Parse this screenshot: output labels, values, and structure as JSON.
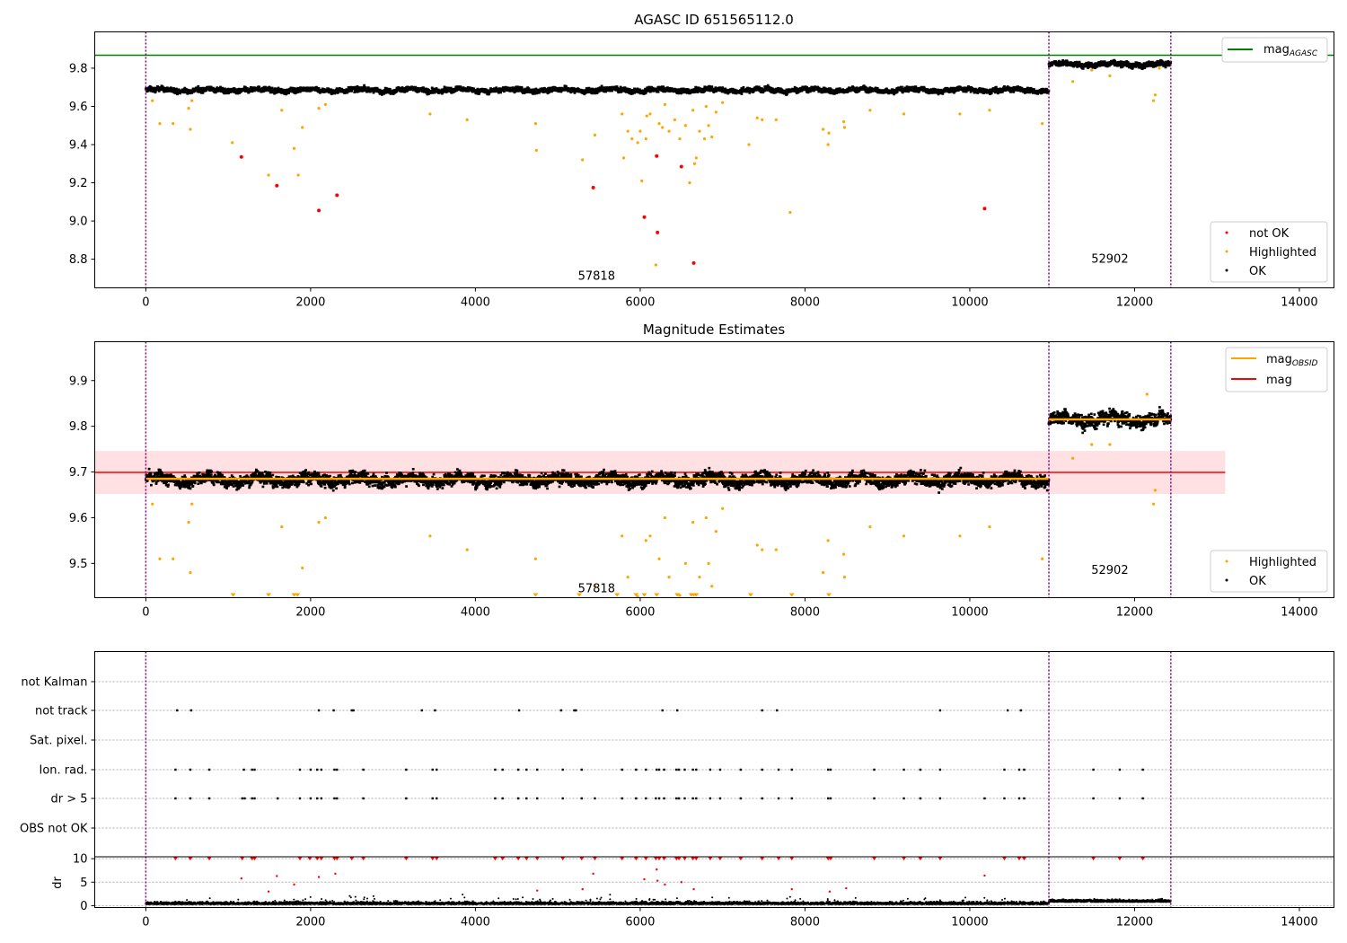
{
  "chart_data": [
    {
      "type": "scatter",
      "title": "AGASC ID 651565112.0",
      "xlim": [
        -620,
        14420
      ],
      "ylim": [
        8.65,
        9.99
      ],
      "xticks": [
        0,
        2000,
        4000,
        6000,
        8000,
        10000,
        12000,
        14000
      ],
      "yticks": [
        8.8,
        9.0,
        9.2,
        9.4,
        9.6,
        9.8
      ],
      "xtick_labels": [
        "0",
        "2000",
        "4000",
        "6000",
        "8000",
        "10000",
        "12000",
        "14000"
      ],
      "ytick_labels": [
        "8.8",
        "9.0",
        "9.2",
        "9.4",
        "9.6",
        "9.8"
      ],
      "hlines": [
        {
          "y": 9.868,
          "color": "#008000",
          "x": [
            -620,
            14420
          ],
          "label": "mag_AGASC"
        }
      ],
      "vlines": [
        0,
        10960,
        12440
      ],
      "vline_color": "#800080",
      "obs_labels": [
        {
          "text": "57818",
          "x": 5470,
          "y": 8.71
        },
        {
          "text": "52902",
          "x": 11700,
          "y": 8.8
        }
      ],
      "bands": [
        {
          "x": [
            0,
            10960
          ],
          "mean": 9.685,
          "spread": 0.026,
          "color": "#000000"
        },
        {
          "x": [
            10960,
            12440
          ],
          "mean": 9.82,
          "spread": 0.028,
          "color": "#000000"
        }
      ],
      "series": [
        {
          "name": "not OK",
          "color": "#ff0000",
          "points": [
            [
              1160,
              9.335
            ],
            [
              1590,
              9.185
            ],
            [
              2100,
              9.055
            ],
            [
              2320,
              9.135
            ],
            [
              5430,
              9.175
            ],
            [
              6050,
              9.02
            ],
            [
              6200,
              9.34
            ],
            [
              6210,
              8.94
            ],
            [
              6500,
              9.285
            ],
            [
              6650,
              8.78
            ],
            [
              10180,
              9.065
            ]
          ]
        },
        {
          "name": "Highlighted",
          "color": "#ffa500",
          "points": [
            [
              80,
              9.63
            ],
            [
              170,
              9.51
            ],
            [
              330,
              9.51
            ],
            [
              520,
              9.59
            ],
            [
              540,
              9.48
            ],
            [
              560,
              9.63
            ],
            [
              1050,
              9.41
            ],
            [
              1490,
              9.24
            ],
            [
              1650,
              9.58
            ],
            [
              1800,
              9.38
            ],
            [
              1850,
              9.24
            ],
            [
              1900,
              9.49
            ],
            [
              2100,
              9.59
            ],
            [
              2180,
              9.61
            ],
            [
              3450,
              9.56
            ],
            [
              3900,
              9.53
            ],
            [
              4730,
              9.51
            ],
            [
              4740,
              9.37
            ],
            [
              5300,
              9.32
            ],
            [
              5450,
              9.45
            ],
            [
              5780,
              9.56
            ],
            [
              5800,
              9.33
            ],
            [
              5850,
              9.47
            ],
            [
              5900,
              9.43
            ],
            [
              5970,
              9.41
            ],
            [
              6000,
              9.47
            ],
            [
              6020,
              9.21
            ],
            [
              6070,
              9.43
            ],
            [
              6080,
              9.55
            ],
            [
              6120,
              9.56
            ],
            [
              6190,
              8.77
            ],
            [
              6230,
              9.51
            ],
            [
              6270,
              9.49
            ],
            [
              6300,
              9.61
            ],
            [
              6350,
              9.47
            ],
            [
              6420,
              9.53
            ],
            [
              6480,
              9.43
            ],
            [
              6550,
              9.5
            ],
            [
              6600,
              9.2
            ],
            [
              6640,
              9.58
            ],
            [
              6660,
              9.3
            ],
            [
              6680,
              9.33
            ],
            [
              6720,
              9.47
            ],
            [
              6780,
              9.43
            ],
            [
              6800,
              9.6
            ],
            [
              6830,
              9.5
            ],
            [
              6870,
              9.44
            ],
            [
              6920,
              9.57
            ],
            [
              7000,
              9.62
            ],
            [
              7320,
              9.4
            ],
            [
              7420,
              9.54
            ],
            [
              7480,
              9.53
            ],
            [
              7650,
              9.53
            ],
            [
              7820,
              9.045
            ],
            [
              8220,
              9.48
            ],
            [
              8280,
              9.4
            ],
            [
              8290,
              9.46
            ],
            [
              8470,
              9.52
            ],
            [
              8480,
              9.49
            ],
            [
              8790,
              9.58
            ],
            [
              9200,
              9.56
            ],
            [
              9880,
              9.56
            ],
            [
              10240,
              9.58
            ],
            [
              10880,
              9.51
            ],
            [
              11250,
              9.73
            ],
            [
              11480,
              9.79
            ],
            [
              11700,
              9.76
            ],
            [
              12230,
              9.63
            ],
            [
              12250,
              9.66
            ],
            [
              12300,
              9.8
            ]
          ]
        }
      ],
      "legend": [
        "not OK",
        "Highlighted",
        "OK"
      ],
      "legend_top": [
        "mag_AGASC"
      ]
    },
    {
      "type": "scatter",
      "title": "Magnitude Estimates",
      "xlim": [
        -620,
        14420
      ],
      "ylim": [
        9.425,
        9.985
      ],
      "xticks": [
        0,
        2000,
        4000,
        6000,
        8000,
        10000,
        12000,
        14000
      ],
      "yticks": [
        9.5,
        9.6,
        9.7,
        9.8,
        9.9
      ],
      "xtick_labels": [
        "0",
        "2000",
        "4000",
        "6000",
        "8000",
        "10000",
        "12000",
        "14000"
      ],
      "ytick_labels": [
        "9.5",
        "9.6",
        "9.7",
        "9.8",
        "9.9"
      ],
      "hlines": [
        {
          "y": 9.699,
          "color": "#ff0000",
          "x": [
            -620,
            13100
          ],
          "label": "mag"
        }
      ],
      "shaded": {
        "x": [
          -620,
          13100
        ],
        "y": [
          9.652,
          9.746
        ],
        "color": "#ffe0e3"
      },
      "segments": [
        {
          "x": [
            0,
            10960
          ],
          "y": 9.685,
          "color": "#ffa500"
        },
        {
          "x": [
            10960,
            12440
          ],
          "y": 9.815,
          "color": "#ffa500"
        }
      ],
      "vlines": [
        0,
        10960,
        12440
      ],
      "vline_color": "#800080",
      "obs_labels": [
        {
          "text": "57818",
          "x": 5470,
          "y": 9.445
        },
        {
          "text": "52902",
          "x": 11700,
          "y": 9.485
        }
      ],
      "bands": [
        {
          "x": [
            0,
            10960
          ],
          "mean": 9.683,
          "spread": 0.028,
          "color": "#000000"
        },
        {
          "x": [
            10960,
            12440
          ],
          "mean": 9.815,
          "spread": 0.03,
          "color": "#000000"
        }
      ],
      "series": [
        {
          "name": "Highlighted",
          "color": "#ffa500",
          "points": [
            [
              80,
              9.63
            ],
            [
              170,
              9.51
            ],
            [
              330,
              9.51
            ],
            [
              520,
              9.59
            ],
            [
              540,
              9.48
            ],
            [
              560,
              9.63
            ],
            [
              1650,
              9.58
            ],
            [
              2100,
              9.59
            ],
            [
              2180,
              9.6
            ],
            [
              1900,
              9.49
            ],
            [
              3450,
              9.56
            ],
            [
              3900,
              9.53
            ],
            [
              4730,
              9.51
            ],
            [
              5450,
              9.45
            ],
            [
              5780,
              9.56
            ],
            [
              5850,
              9.47
            ],
            [
              5970,
              9.41
            ],
            [
              6070,
              9.55
            ],
            [
              6120,
              9.56
            ],
            [
              6230,
              9.51
            ],
            [
              6300,
              9.6
            ],
            [
              6350,
              9.47
            ],
            [
              6480,
              9.43
            ],
            [
              6550,
              9.5
            ],
            [
              6640,
              9.59
            ],
            [
              6720,
              9.47
            ],
            [
              6800,
              9.6
            ],
            [
              6830,
              9.5
            ],
            [
              6870,
              9.45
            ],
            [
              6920,
              9.57
            ],
            [
              7000,
              9.62
            ],
            [
              7420,
              9.54
            ],
            [
              7480,
              9.53
            ],
            [
              7650,
              9.53
            ],
            [
              8220,
              9.48
            ],
            [
              8280,
              9.55
            ],
            [
              8470,
              9.52
            ],
            [
              8480,
              9.47
            ],
            [
              8790,
              9.58
            ],
            [
              9200,
              9.56
            ],
            [
              9880,
              9.56
            ],
            [
              10240,
              9.58
            ],
            [
              10880,
              9.51
            ],
            [
              11250,
              9.73
            ],
            [
              11480,
              9.76
            ],
            [
              11700,
              9.76
            ],
            [
              12230,
              9.63
            ],
            [
              12250,
              9.66
            ],
            [
              12150,
              9.87
            ]
          ]
        },
        {
          "name": "clipped",
          "color": "#ffa500",
          "marker": "triangle-down",
          "points": [
            [
              1060,
              9.43
            ],
            [
              1490,
              9.43
            ],
            [
              1800,
              9.43
            ],
            [
              1840,
              9.43
            ],
            [
              4730,
              9.43
            ],
            [
              5260,
              9.43
            ],
            [
              5720,
              9.43
            ],
            [
              5950,
              9.43
            ],
            [
              6050,
              9.43
            ],
            [
              6200,
              9.43
            ],
            [
              6450,
              9.43
            ],
            [
              6620,
              9.43
            ],
            [
              6650,
              9.43
            ],
            [
              6680,
              9.43
            ],
            [
              7340,
              9.43
            ],
            [
              7840,
              9.43
            ],
            [
              8290,
              9.43
            ]
          ]
        }
      ],
      "legend": [
        "Highlighted",
        "OK"
      ],
      "legend_top": [
        "mag_OBSID",
        "mag"
      ]
    },
    {
      "type": "scatter",
      "title": "",
      "xlim": [
        -620,
        14420
      ],
      "xticks": [
        0,
        2000,
        4000,
        6000,
        8000,
        10000,
        12000,
        14000
      ],
      "xtick_labels": [
        "0",
        "2000",
        "4000",
        "6000",
        "8000",
        "10000",
        "12000",
        "14000"
      ],
      "flag_rows": [
        "not Kalman",
        "not track",
        "Sat. pixel.",
        "Ion. rad.",
        "dr > 5",
        "OBS not OK"
      ],
      "flag_points": {
        "not track": [
          380,
          550,
          2100,
          2280,
          2500,
          2520,
          3350,
          3510,
          4530,
          5040,
          5200,
          5220,
          6270,
          6450,
          7480,
          7660,
          9640,
          10460,
          10620
        ],
        "Ion. rad.": [
          360,
          540,
          770,
          1190,
          1290,
          1320,
          1870,
          2000,
          2080,
          2130,
          2290,
          2320,
          2640,
          3160,
          3480,
          3530,
          4240,
          4330,
          4520,
          4620,
          4750,
          5060,
          5290,
          5780,
          5950,
          6070,
          6200,
          6230,
          6290,
          6440,
          6470,
          6540,
          6640,
          6680,
          6850,
          6970,
          7220,
          7480,
          7680,
          7840,
          8280,
          8310,
          8840,
          9200,
          9400,
          9640,
          10420,
          10600,
          10660,
          11500,
          11820,
          12100
        ],
        "dr > 5": [
          360,
          540,
          770,
          1170,
          1200,
          1290,
          1320,
          1600,
          1870,
          2000,
          2080,
          2130,
          2290,
          2320,
          2640,
          3160,
          3480,
          3530,
          4240,
          4330,
          4520,
          4620,
          4750,
          5060,
          5290,
          5450,
          5780,
          5950,
          6070,
          6190,
          6230,
          6290,
          6440,
          6470,
          6540,
          6640,
          6680,
          6850,
          6970,
          7220,
          7480,
          7680,
          7840,
          8280,
          8310,
          8840,
          9200,
          9400,
          9640,
          10180,
          10420,
          10600,
          10660,
          11500,
          11820,
          12100
        ]
      },
      "dr_axis": {
        "label": "dr",
        "ylim": [
          -0.4,
          10.4
        ],
        "yticks": [
          0,
          5,
          10
        ],
        "ytick_labels": [
          "0",
          "5",
          "10"
        ]
      },
      "dr_outliers": [
        [
          1160,
          5.8
        ],
        [
          1590,
          6.3
        ],
        [
          1800,
          4.5
        ],
        [
          2100,
          6.1
        ],
        [
          2300,
          6.8
        ],
        [
          5430,
          6.8
        ],
        [
          6050,
          5.6
        ],
        [
          6200,
          7.7
        ],
        [
          6210,
          5.3
        ],
        [
          6500,
          5.0
        ],
        [
          6650,
          3.5
        ],
        [
          10180,
          6.4
        ],
        [
          1490,
          3.0
        ],
        [
          4750,
          3.2
        ],
        [
          5300,
          3.5
        ],
        [
          6300,
          4.5
        ],
        [
          7840,
          3.5
        ],
        [
          8300,
          3.0
        ],
        [
          8500,
          3.7
        ]
      ],
      "dr_top": [
        360,
        540,
        770,
        1170,
        1290,
        1320,
        1870,
        1990,
        2080,
        2130,
        2290,
        2320,
        2500,
        2640,
        3160,
        3480,
        3530,
        4240,
        4330,
        4520,
        4620,
        4750,
        5060,
        5290,
        5450,
        5780,
        5950,
        6070,
        6190,
        6230,
        6290,
        6440,
        6470,
        6540,
        6640,
        6680,
        6850,
        6970,
        7220,
        7480,
        7680,
        7840,
        8280,
        8310,
        8840,
        9200,
        9400,
        9640,
        10420,
        10600,
        10660,
        11500,
        11820,
        12100
      ],
      "vlines": [
        0,
        10960,
        12440
      ],
      "vline_color": "#800080"
    }
  ],
  "legend_labels": {
    "not_ok": "not OK",
    "highlighted": "Highlighted",
    "ok": "OK",
    "mag_agasc_main": "mag",
    "mag_agasc_sub": "AGASC",
    "mag_obsid_main": "mag",
    "mag_obsid_sub": "OBSID",
    "mag": "mag"
  }
}
